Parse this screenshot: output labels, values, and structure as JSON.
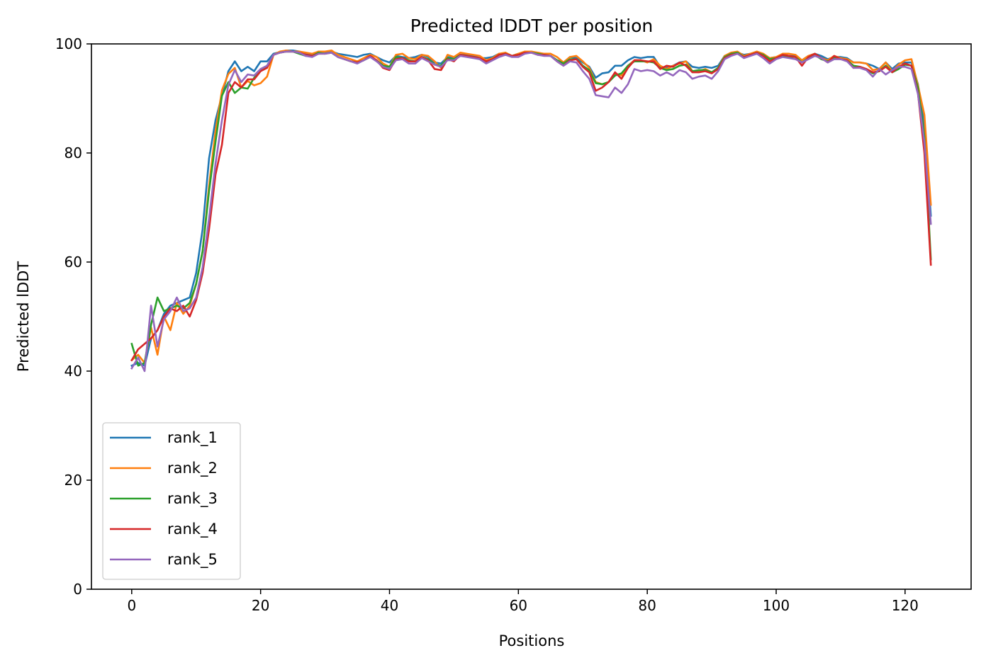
{
  "chart_data": {
    "type": "line",
    "title": "Predicted lDDT per position",
    "xlabel": "Positions",
    "ylabel": "Predicted lDDT",
    "xlim": [
      -6.25,
      130.25
    ],
    "ylim": [
      0,
      100
    ],
    "xticks": [
      0,
      20,
      40,
      60,
      80,
      100,
      120
    ],
    "yticks": [
      0,
      20,
      40,
      60,
      80,
      100
    ],
    "grid": false,
    "legend_position": "lower-left",
    "series": [
      {
        "name": "rank_1",
        "color": "#1f77b4",
        "values": [
          41.0,
          41.5,
          41.0,
          46.0,
          47.5,
          50.5,
          52.0,
          52.5,
          53.0,
          53.5,
          58.0,
          66.0,
          79.0,
          86.0,
          90.5,
          95.0,
          96.8,
          95.0,
          95.8,
          95.0,
          96.8,
          96.8,
          98.2,
          98.5,
          98.8,
          98.8,
          98.6,
          98.2,
          98.0,
          98.6,
          98.4,
          98.6,
          98.2,
          98.0,
          97.8,
          97.6,
          98.0,
          98.2,
          97.6,
          97.0,
          96.6,
          97.8,
          97.6,
          97.4,
          97.6,
          98.0,
          97.6,
          96.6,
          96.4,
          97.6,
          97.4,
          98.0,
          98.0,
          97.8,
          97.4,
          97.4,
          97.6,
          98.2,
          98.0,
          97.8,
          98.2,
          98.4,
          98.6,
          98.2,
          98.0,
          97.8,
          97.0,
          96.6,
          97.6,
          97.4,
          96.6,
          95.8,
          93.8,
          94.6,
          94.8,
          96.0,
          96.0,
          97.0,
          97.6,
          97.4,
          97.6,
          97.6,
          95.8,
          95.6,
          96.0,
          96.6,
          96.8,
          95.8,
          95.6,
          95.8,
          95.6,
          96.0,
          97.8,
          98.2,
          98.4,
          98.0,
          98.2,
          98.4,
          98.0,
          97.4,
          97.6,
          98.0,
          97.8,
          97.8,
          97.0,
          97.8,
          98.2,
          97.8,
          97.2,
          97.6,
          97.6,
          97.4,
          96.6,
          96.6,
          96.4,
          96.0,
          95.4,
          96.6,
          95.4,
          96.4,
          96.6,
          96.6,
          92.6,
          85.0,
          68.5
        ]
      },
      {
        "name": "rank_2",
        "color": "#ff7f0e",
        "values": [
          42.0,
          43.0,
          41.5,
          48.0,
          43.0,
          50.0,
          47.5,
          52.5,
          50.5,
          52.0,
          56.0,
          62.0,
          74.0,
          84.0,
          91.5,
          94.5,
          95.6,
          92.0,
          93.2,
          92.4,
          92.8,
          94.0,
          98.0,
          98.6,
          98.8,
          98.6,
          98.6,
          98.4,
          98.2,
          98.6,
          98.6,
          98.8,
          98.0,
          97.6,
          97.2,
          96.8,
          97.4,
          98.0,
          97.6,
          96.4,
          95.8,
          98.0,
          98.2,
          97.4,
          97.2,
          98.0,
          97.8,
          96.8,
          95.6,
          98.0,
          97.6,
          98.4,
          98.2,
          98.0,
          97.8,
          97.0,
          97.4,
          98.2,
          98.4,
          97.8,
          98.2,
          98.6,
          98.6,
          98.4,
          98.2,
          98.2,
          97.6,
          96.6,
          97.6,
          97.8,
          96.8,
          95.6,
          93.0,
          92.6,
          93.0,
          94.6,
          94.2,
          96.0,
          97.0,
          97.0,
          96.6,
          97.2,
          96.0,
          95.4,
          96.0,
          96.4,
          96.8,
          95.0,
          95.0,
          95.4,
          94.8,
          95.6,
          97.8,
          98.4,
          98.6,
          97.8,
          98.2,
          98.6,
          98.2,
          97.4,
          97.6,
          98.2,
          98.2,
          98.0,
          97.0,
          97.8,
          98.2,
          97.4,
          97.0,
          97.8,
          97.4,
          97.2,
          96.6,
          96.6,
          96.4,
          95.2,
          95.4,
          96.6,
          95.0,
          96.2,
          97.0,
          97.2,
          92.4,
          87.0,
          70.5
        ]
      },
      {
        "name": "rank_3",
        "color": "#2ca02c",
        "values": [
          45.0,
          41.0,
          41.5,
          48.5,
          53.5,
          51.0,
          51.5,
          52.0,
          51.5,
          52.5,
          56.0,
          62.0,
          73.0,
          82.0,
          90.5,
          93.0,
          91.0,
          92.0,
          91.8,
          93.8,
          95.0,
          96.0,
          98.0,
          98.4,
          98.6,
          98.6,
          98.2,
          97.8,
          97.8,
          98.4,
          98.2,
          98.4,
          97.6,
          97.2,
          96.8,
          96.6,
          97.0,
          97.6,
          97.0,
          96.0,
          95.8,
          97.6,
          97.4,
          97.0,
          96.8,
          97.6,
          97.2,
          96.2,
          96.0,
          97.4,
          97.2,
          98.0,
          97.8,
          97.6,
          97.2,
          96.6,
          97.2,
          98.0,
          98.2,
          97.8,
          98.0,
          98.4,
          98.4,
          98.2,
          98.0,
          97.8,
          97.0,
          96.4,
          97.2,
          97.2,
          96.0,
          95.2,
          92.8,
          92.6,
          93.0,
          94.2,
          94.6,
          96.0,
          96.8,
          96.8,
          96.8,
          96.6,
          95.6,
          95.2,
          95.4,
          96.0,
          96.2,
          95.0,
          95.2,
          95.2,
          94.8,
          95.6,
          97.6,
          98.2,
          98.4,
          97.6,
          98.0,
          98.4,
          98.0,
          97.2,
          97.4,
          97.8,
          97.6,
          97.6,
          96.6,
          97.4,
          98.0,
          97.2,
          96.8,
          97.4,
          97.2,
          97.0,
          96.0,
          95.8,
          95.4,
          94.6,
          95.0,
          96.0,
          94.8,
          95.4,
          96.2,
          96.0,
          92.0,
          83.0,
          60.5
        ]
      },
      {
        "name": "rank_4",
        "color": "#d62728",
        "values": [
          42.0,
          44.0,
          45.0,
          46.0,
          47.5,
          50.0,
          51.5,
          51.0,
          52.0,
          50.0,
          53.0,
          58.0,
          66.0,
          76.0,
          81.5,
          91.0,
          93.0,
          92.0,
          93.5,
          93.5,
          95.0,
          95.6,
          98.0,
          98.4,
          98.6,
          98.6,
          98.4,
          98.0,
          97.8,
          98.2,
          98.2,
          98.4,
          97.6,
          97.2,
          96.8,
          96.6,
          97.0,
          97.8,
          97.0,
          95.6,
          95.2,
          97.2,
          97.4,
          96.8,
          96.8,
          97.6,
          97.0,
          95.4,
          95.2,
          97.2,
          96.8,
          98.0,
          97.8,
          97.6,
          97.4,
          96.8,
          97.2,
          98.0,
          98.2,
          97.8,
          98.0,
          98.4,
          98.4,
          98.0,
          98.0,
          97.8,
          96.8,
          96.0,
          97.0,
          97.2,
          95.8,
          94.8,
          91.4,
          92.0,
          93.0,
          94.8,
          93.6,
          95.6,
          97.0,
          97.0,
          96.8,
          96.8,
          95.4,
          96.0,
          95.8,
          96.6,
          96.0,
          94.8,
          94.8,
          95.0,
          94.6,
          95.4,
          97.4,
          98.0,
          98.2,
          97.6,
          98.0,
          98.4,
          97.8,
          96.8,
          97.4,
          98.0,
          97.8,
          97.6,
          96.0,
          97.6,
          98.2,
          97.4,
          96.6,
          97.8,
          97.2,
          97.0,
          95.6,
          95.8,
          95.4,
          94.8,
          95.0,
          95.8,
          94.8,
          95.8,
          96.4,
          96.0,
          91.0,
          80.0,
          59.5
        ]
      },
      {
        "name": "rank_5",
        "color": "#9467bd",
        "values": [
          40.5,
          42.5,
          40.0,
          52.0,
          44.5,
          49.5,
          51.0,
          53.5,
          51.0,
          51.5,
          53.5,
          59.0,
          68.0,
          78.0,
          86.0,
          92.5,
          95.2,
          93.0,
          94.4,
          94.2,
          95.4,
          96.0,
          98.0,
          98.4,
          98.6,
          98.6,
          98.4,
          97.8,
          97.6,
          98.2,
          98.2,
          98.4,
          97.6,
          97.2,
          96.8,
          96.4,
          97.0,
          97.6,
          96.8,
          95.8,
          95.4,
          97.0,
          97.2,
          96.4,
          96.4,
          97.4,
          96.8,
          96.2,
          95.8,
          97.0,
          97.0,
          97.8,
          97.6,
          97.4,
          97.2,
          96.4,
          97.0,
          97.6,
          98.0,
          97.6,
          97.6,
          98.2,
          98.4,
          98.0,
          97.8,
          97.8,
          96.8,
          96.0,
          96.8,
          96.6,
          95.0,
          93.6,
          90.6,
          90.4,
          90.2,
          92.0,
          91.0,
          92.6,
          95.4,
          95.0,
          95.2,
          95.0,
          94.2,
          94.8,
          94.2,
          95.2,
          94.8,
          93.6,
          94.0,
          94.2,
          93.6,
          95.0,
          97.2,
          97.8,
          98.2,
          97.4,
          97.8,
          98.2,
          97.4,
          96.4,
          97.2,
          97.6,
          97.4,
          97.2,
          96.6,
          97.2,
          97.8,
          97.4,
          96.6,
          97.2,
          97.2,
          96.8,
          95.6,
          95.6,
          95.2,
          94.0,
          95.4,
          94.4,
          95.2,
          95.8,
          95.8,
          95.4,
          90.8,
          82.0,
          67.0
        ]
      }
    ]
  }
}
